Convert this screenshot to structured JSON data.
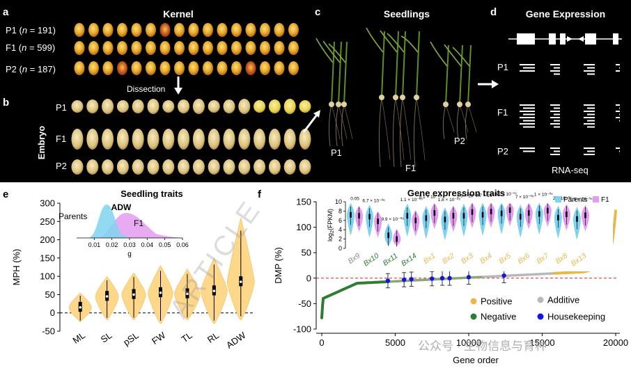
{
  "panels": {
    "a": {
      "letter": "a",
      "title": "Kernel",
      "rows": [
        {
          "name": "P1",
          "n": "191"
        },
        {
          "name": "F1",
          "n": "599"
        },
        {
          "name": "P2",
          "n": "187"
        }
      ],
      "dissection": "Dissection"
    },
    "b": {
      "letter": "b",
      "side_label": "Embryo",
      "rows": [
        "P1",
        "F1",
        "P2"
      ]
    },
    "c": {
      "letter": "c",
      "title": "Seedlings",
      "labels": [
        "P1",
        "F1",
        "P2"
      ]
    },
    "d": {
      "letter": "d",
      "title": "Gene Expression",
      "rows": [
        "P1",
        "F1",
        "P2"
      ],
      "footer": "RNA-seq"
    },
    "e": {
      "letter": "e",
      "title": "Seedling traits"
    },
    "f": {
      "letter": "f",
      "inset_title": "Gene expression traits"
    }
  },
  "watermark": "ARTICLE",
  "wechat_watermark": "公众号 · 生物信息与育种",
  "colors": {
    "parents": "#7fd3f0",
    "f1": "#e49cf0",
    "violin": "#fdd78a",
    "positive": "#e9b84a",
    "negative": "#2e7d32",
    "additive": "#b8b8b8",
    "housekeeping": "#1414e0",
    "zero_line": "#e83030"
  },
  "chart_data": [
    {
      "id": "e-violin",
      "type": "violin",
      "title": "Seedling traits",
      "ylabel": "MPH (%)",
      "ylim": [
        -50,
        300
      ],
      "yticks": [
        -50,
        0,
        50,
        100,
        150,
        200,
        250,
        300
      ],
      "categories": [
        "ML",
        "SL",
        "pSL",
        "FW",
        "TL",
        "RL",
        "ADW"
      ],
      "medians": [
        15,
        45,
        50,
        55,
        52,
        60,
        85
      ],
      "ranges": [
        [
          -25,
          55
        ],
        [
          -20,
          100
        ],
        [
          -20,
          110
        ],
        [
          -30,
          130
        ],
        [
          -20,
          120
        ],
        [
          -30,
          150
        ],
        [
          -20,
          260
        ]
      ],
      "hline": 0
    },
    {
      "id": "e-inset-density",
      "type": "area",
      "title": "ADW",
      "xlabel": "g",
      "xlim": [
        0.0,
        0.06
      ],
      "xticks": [
        0.01,
        0.02,
        0.03,
        0.04,
        0.05,
        0.06
      ],
      "series": [
        {
          "name": "Parents",
          "peak": 0.017
        },
        {
          "name": "F1",
          "peak": 0.028
        }
      ]
    },
    {
      "id": "f-dmp",
      "type": "scatter",
      "xlabel": "Gene order",
      "ylabel": "DMP (%)",
      "xlim": [
        0,
        20000
      ],
      "ylim": [
        -100,
        150
      ],
      "xticks": [
        0,
        5000,
        10000,
        15000,
        20000
      ],
      "yticks": [
        -100,
        -50,
        0,
        50,
        100,
        150
      ],
      "legend": [
        "Positive",
        "Negative",
        "Additive",
        "Housekeeping"
      ],
      "housekeeping_points": [
        {
          "x": 4500,
          "y": -5
        },
        {
          "x": 5600,
          "y": -3
        },
        {
          "x": 6100,
          "y": -2
        },
        {
          "x": 7500,
          "y": -1
        },
        {
          "x": 8200,
          "y": 0
        },
        {
          "x": 8700,
          "y": 0
        },
        {
          "x": 10000,
          "y": 2
        },
        {
          "x": 12400,
          "y": 5
        }
      ]
    },
    {
      "id": "f-inset-violins",
      "type": "violin",
      "ylabel": "log2(FPKM)",
      "ylim": [
        0,
        10
      ],
      "yticks": [
        0,
        2,
        4,
        6,
        8,
        10
      ],
      "legend": [
        "Parents",
        "F1"
      ],
      "categories": [
        "Bx9",
        "Bx10",
        "Bx11",
        "Bx14",
        "Bx1",
        "Bx2",
        "Bx3",
        "Bx4",
        "Bx5",
        "Bx6",
        "Bx7",
        "Bx8",
        "Bx13"
      ],
      "category_colors": [
        "#888888",
        "#2e7d32",
        "#2e7d32",
        "#2e7d32",
        "#e9b84a",
        "#e9b84a",
        "#e9b84a",
        "#e9b84a",
        "#e9b84a",
        "#e9b84a",
        "#e9b84a",
        "#e9b84a",
        "#e9b84a"
      ],
      "pvalues": [
        "0.05",
        "6.7 × 10⁻⁰⁶",
        "9.9 × 10⁻⁰⁶",
        "1.1 × 10⁻⁰⁵",
        "5.1 × 10⁻⁰⁶",
        "1.8 × 10⁻⁰⁵",
        "3.3 × 10⁻⁰⁶",
        "3.7 × 10⁻⁰⁵",
        "9.1 × 10⁻⁰⁷",
        "7 × 10⁻⁰⁶",
        "1 × 10⁻⁰⁵",
        "2 × 10⁻⁰⁶",
        "1.5 × 10⁻⁰⁵"
      ],
      "parents_medians": [
        7.2,
        6.8,
        2.8,
        7.0,
        6.5,
        6.2,
        7.0,
        7.2,
        7.5,
        6.8,
        7.4,
        6.6,
        6.3
      ],
      "f1_medians": [
        7.0,
        5.8,
        2.0,
        6.0,
        7.6,
        7.0,
        7.8,
        7.9,
        8.2,
        7.6,
        8.1,
        7.3,
        7.1
      ]
    }
  ]
}
